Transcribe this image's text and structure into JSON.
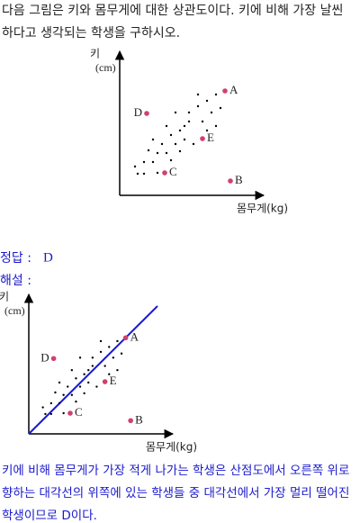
{
  "question": {
    "lines": [
      "다음 그림은 키와 몸무게에 대한 상관도이다. 키에 비해 가장 날씬",
      "하다고 생각되는 학생을 구하시오."
    ]
  },
  "figure": {
    "y_label": "키",
    "y_unit": "(cm)",
    "x_label": "몸무게(kg)",
    "points": [
      "A",
      "B",
      "C",
      "D",
      "E"
    ]
  },
  "answer": {
    "label": "정답 :",
    "value": "D"
  },
  "explanation": {
    "label": "해설 :",
    "figure": {
      "y_label": "키",
      "y_unit": "(cm)",
      "x_label": "몸무게(kg)",
      "points": [
        "A",
        "B",
        "C",
        "D",
        "E"
      ]
    },
    "lines": [
      "키에 비해 몸무게가 가장 적게 나가는 학생은 산점도에서 오른쪽 위로",
      "향하는 대각선의 위쪽에 있는 학생들 중 대각선에서 가장 멀리 떨어진",
      "학생이므로 D이다."
    ]
  }
}
